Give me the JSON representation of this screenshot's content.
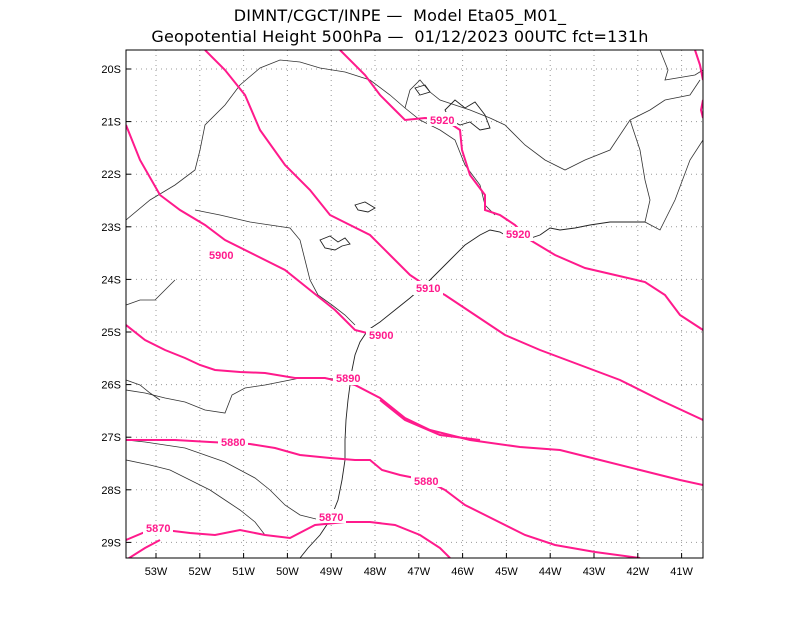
{
  "title": {
    "line1": "DIMNT/CGCT/INPE —  Model Eta05_M01_",
    "line2": "Geopotential Height 500hPa —  01/12/2023 00UTC fct=131h"
  },
  "colors": {
    "contour": "#ff1a8c",
    "grid": "#9a9a9a",
    "border": "#333333"
  },
  "map": {
    "x_ticks": [
      "53W",
      "52W",
      "51W",
      "50W",
      "49W",
      "48W",
      "47W",
      "46W",
      "45W",
      "44W",
      "43W",
      "42W",
      "41W"
    ],
    "y_ticks": [
      "20S",
      "21S",
      "22S",
      "23S",
      "24S",
      "25S",
      "26S",
      "27S",
      "28S",
      "29S"
    ]
  },
  "contour_labels": [
    "5920",
    "5920",
    "5910",
    "5900",
    "5900",
    "5890",
    "5880",
    "5880",
    "5870",
    "5870"
  ]
}
